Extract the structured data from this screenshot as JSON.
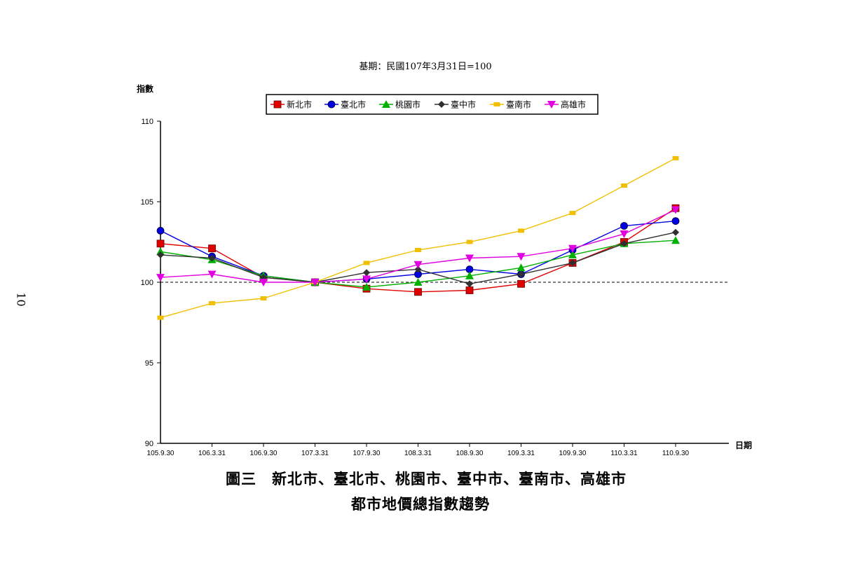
{
  "page_number": "10",
  "caption": {
    "line1": "圖三　新北市、臺北市、桃園市、臺中市、臺南市、高雄市",
    "line2": "都市地價總指數趨勢"
  },
  "chart_data": {
    "type": "line",
    "title": "",
    "subtitle": "基期：民國107年3月31日=100",
    "ylabel": "指數",
    "xlabel": "日期",
    "ylim": [
      90,
      110
    ],
    "yticks": [
      90,
      95,
      100,
      105,
      110
    ],
    "reference_line": 100,
    "legend_position": "top-center",
    "categories": [
      "105.9.30",
      "106.3.31",
      "106.9.30",
      "107.3.31",
      "107.9.30",
      "108.3.31",
      "108.9.30",
      "109.3.31",
      "109.9.30",
      "110.3.31",
      "110.9.30"
    ],
    "series": [
      {
        "name": "新北市",
        "color": "#e00000",
        "marker": "square",
        "values": [
          102.4,
          102.1,
          100.3,
          100.0,
          99.6,
          99.4,
          99.5,
          99.9,
          101.2,
          102.5,
          104.6
        ]
      },
      {
        "name": "臺北市",
        "color": "#0000e0",
        "marker": "circle",
        "values": [
          103.2,
          101.6,
          100.4,
          100.0,
          100.2,
          100.5,
          100.8,
          100.5,
          102.0,
          103.5,
          103.8
        ]
      },
      {
        "name": "桃園市",
        "color": "#00b000",
        "marker": "triangle-up",
        "values": [
          101.9,
          101.4,
          100.4,
          100.0,
          99.7,
          100.0,
          100.4,
          100.9,
          101.7,
          102.4,
          102.6
        ]
      },
      {
        "name": "臺中市",
        "color": "#303030",
        "marker": "diamond",
        "values": [
          101.7,
          101.5,
          100.3,
          100.0,
          100.6,
          100.8,
          99.9,
          100.5,
          101.2,
          102.4,
          103.1
        ]
      },
      {
        "name": "臺南市",
        "color": "#f0c000",
        "marker": "square-small",
        "values": [
          97.8,
          98.7,
          99.0,
          100.0,
          101.2,
          102.0,
          102.5,
          103.2,
          104.3,
          106.0,
          107.7
        ]
      },
      {
        "name": "高雄市",
        "color": "#e000e0",
        "marker": "triangle-down",
        "values": [
          100.3,
          100.5,
          100.0,
          100.0,
          100.2,
          101.1,
          101.5,
          101.6,
          102.1,
          103.0,
          104.5
        ]
      }
    ]
  }
}
